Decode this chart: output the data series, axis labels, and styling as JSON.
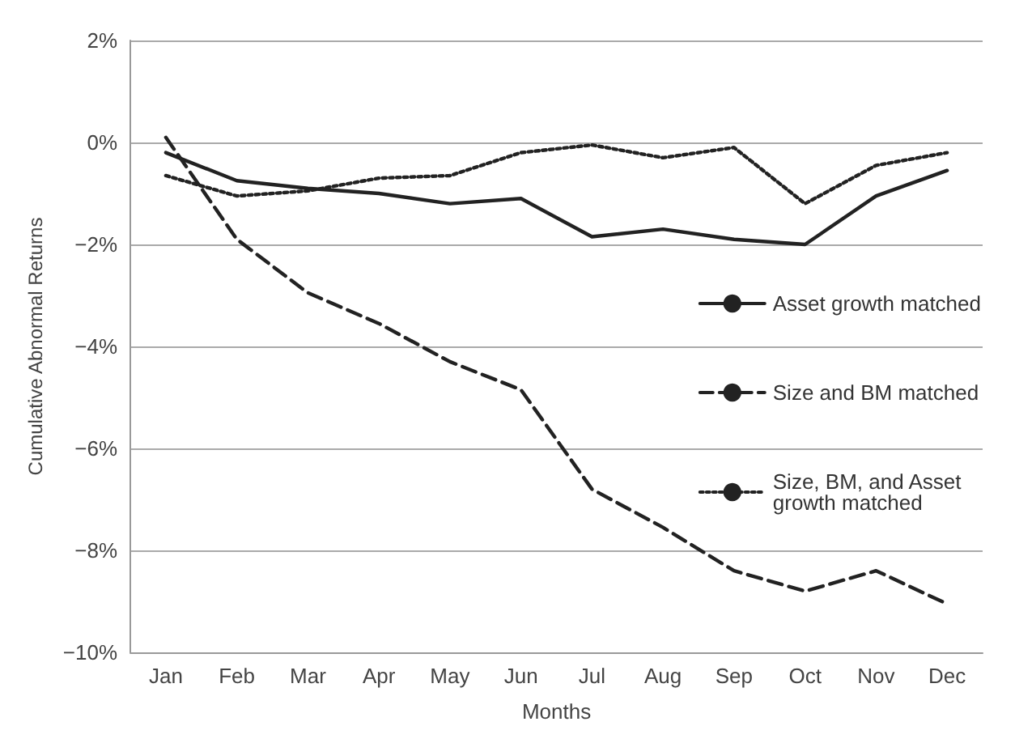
{
  "chart_data": {
    "type": "line",
    "xlabel": "Months",
    "ylabel": "Cumulative Abnormal Returns",
    "categories": [
      "Jan",
      "Feb",
      "Mar",
      "Apr",
      "May",
      "Jun",
      "Jul",
      "Aug",
      "Sep",
      "Oct",
      "Nov",
      "Dec"
    ],
    "series": [
      {
        "name": "Asset growth matched",
        "color": "#222222",
        "line_style": "solid",
        "values": [
          -0.2,
          -0.75,
          -0.9,
          -1.0,
          -1.2,
          -1.1,
          -1.85,
          -1.7,
          -1.9,
          -2.0,
          -1.05,
          -0.55
        ]
      },
      {
        "name": "Size and BM matched",
        "color": "#222222",
        "line_style": "dashed",
        "values": [
          0.1,
          -1.9,
          -2.95,
          -3.55,
          -4.3,
          -4.85,
          -6.8,
          -7.55,
          -8.4,
          -8.8,
          -8.4,
          -9.05
        ]
      },
      {
        "name": "Size, BM, and Asset growth matched",
        "color": "#222222",
        "line_style": "dotted",
        "values": [
          -0.65,
          -1.05,
          -0.95,
          -0.7,
          -0.65,
          -0.2,
          -0.05,
          -0.3,
          -0.1,
          -1.2,
          -0.45,
          -0.2
        ]
      }
    ],
    "ylim": [
      -10,
      2
    ],
    "yticks": [
      {
        "value": -10,
        "label": "−10%"
      },
      {
        "value": -8,
        "label": "−8%"
      },
      {
        "value": -6,
        "label": "−6%"
      },
      {
        "value": -4,
        "label": "−4%"
      },
      {
        "value": -2,
        "label": "−2%"
      },
      {
        "value": 0,
        "label": "0%"
      },
      {
        "value": 2,
        "label": "2%"
      }
    ],
    "grid": "y",
    "legend": "right",
    "marker": "none"
  }
}
